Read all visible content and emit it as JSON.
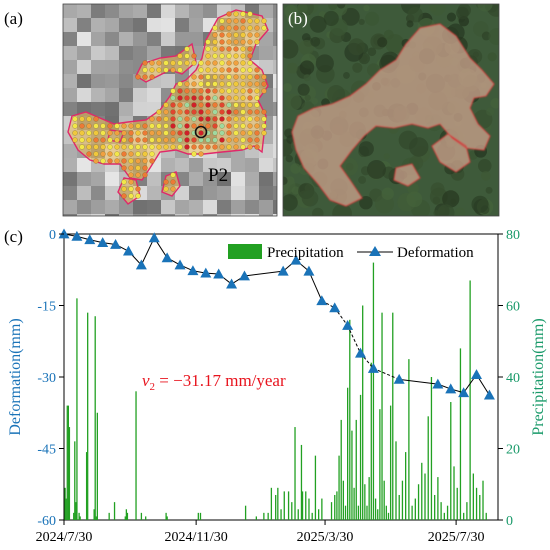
{
  "panels": {
    "a": {
      "letter": "(a)",
      "point_label": "P2"
    },
    "b": {
      "letter": "(b)"
    }
  },
  "chart_data": {
    "type": "bar+line",
    "panel_label": "(c)",
    "x_ticks": [
      "2024/7/30",
      "2024/11/30",
      "2025/3/30",
      "2025/7/30"
    ],
    "ylabel": "Deformation(mm)",
    "ylabel_right": "Precipitation(mm)",
    "ylim": [
      -60,
      0
    ],
    "y_ticks": [
      0,
      -15,
      -30,
      -45,
      -60
    ],
    "ylim_right": [
      0,
      80
    ],
    "y_ticks_right": [
      0,
      20,
      40,
      60,
      80
    ],
    "grid": false,
    "legend_position": "top-right",
    "annotation": {
      "symbol": "v",
      "subscript": "2",
      "text": " = −31.17 mm/year"
    },
    "colors": {
      "deformation": "#1a73b8",
      "precipitation": "#22a022",
      "annotation": "#e8141e",
      "right_axis": "#1a9a6a"
    },
    "series": [
      {
        "name": "Precipitation",
        "type": "bar",
        "x": [
          "2024-07-31",
          "2024-08-01",
          "2024-08-02",
          "2024-08-03",
          "2024-08-04",
          "2024-08-08",
          "2024-08-09",
          "2024-08-10",
          "2024-08-11",
          "2024-08-13",
          "2024-08-14",
          "2024-08-20",
          "2024-08-21",
          "2024-08-27",
          "2024-08-28",
          "2024-08-29",
          "2024-08-30",
          "2024-09-10",
          "2024-09-15",
          "2024-09-25",
          "2024-09-26",
          "2024-09-27",
          "2024-10-05",
          "2024-10-10",
          "2024-10-14",
          "2024-11-02",
          "2024-11-03",
          "2024-12-02",
          "2024-12-04",
          "2025-01-15",
          "2025-01-25",
          "2025-02-01",
          "2025-02-05",
          "2025-02-08",
          "2025-02-12",
          "2025-02-14",
          "2025-02-17",
          "2025-02-20",
          "2025-02-24",
          "2025-02-27",
          "2025-03-02",
          "2025-03-05",
          "2025-03-08",
          "2025-03-09",
          "2025-03-12",
          "2025-03-15",
          "2025-03-18",
          "2025-03-21",
          "2025-03-24",
          "2025-03-27",
          "2025-04-05",
          "2025-04-08",
          "2025-04-10",
          "2025-04-12",
          "2025-04-14",
          "2025-04-16",
          "2025-04-18",
          "2025-04-20",
          "2025-04-22",
          "2025-04-24",
          "2025-04-26",
          "2025-04-28",
          "2025-04-30",
          "2025-05-02",
          "2025-05-04",
          "2025-05-06",
          "2025-05-08",
          "2025-05-10",
          "2025-05-12",
          "2025-05-14",
          "2025-05-16",
          "2025-05-18",
          "2025-05-20",
          "2025-05-22",
          "2025-05-24",
          "2025-05-26",
          "2025-05-28",
          "2025-05-30",
          "2025-06-01",
          "2025-06-04",
          "2025-06-07",
          "2025-06-10",
          "2025-06-13",
          "2025-06-16",
          "2025-06-19",
          "2025-06-22",
          "2025-06-25",
          "2025-06-28",
          "2025-07-01",
          "2025-07-04",
          "2025-07-07",
          "2025-07-10",
          "2025-07-13",
          "2025-07-16",
          "2025-07-19",
          "2025-07-22",
          "2025-07-25",
          "2025-07-28",
          "2025-07-31",
          "2025-08-03",
          "2025-08-06",
          "2025-08-09",
          "2025-08-12",
          "2025-08-15",
          "2025-08-18",
          "2025-08-21",
          "2025-08-24",
          "2025-08-27"
        ],
        "values": [
          9,
          6,
          32,
          32,
          26,
          2,
          22,
          5,
          62,
          2,
          1,
          19,
          58,
          3,
          57,
          1,
          30,
          2,
          5,
          1,
          3,
          2,
          36,
          2,
          1,
          2,
          1,
          2,
          2,
          4,
          1,
          2,
          2,
          9,
          7,
          9,
          3,
          8,
          8,
          5,
          26,
          3,
          21,
          8,
          8,
          6,
          2,
          18,
          3,
          6,
          5,
          7,
          8,
          18,
          28,
          11,
          4,
          37,
          56,
          25,
          9,
          28,
          4,
          35,
          60,
          10,
          4,
          12,
          44,
          72,
          6,
          3,
          31,
          58,
          11,
          4,
          2,
          32,
          58,
          22,
          7,
          11,
          19,
          45,
          4,
          6,
          10,
          16,
          13,
          29,
          40,
          7,
          12,
          5,
          2,
          4,
          33,
          15,
          9,
          48,
          2,
          5,
          67,
          13,
          9,
          7,
          11,
          2
        ]
      },
      {
        "name": "Deformation",
        "type": "line",
        "x": [
          "2024-07-30",
          "2024-08-11",
          "2024-08-23",
          "2024-09-04",
          "2024-09-16",
          "2024-09-28",
          "2024-10-10",
          "2024-10-22",
          "2024-11-03",
          "2024-11-15",
          "2024-11-27",
          "2024-12-09",
          "2024-12-21",
          "2025-01-02",
          "2025-01-14",
          "2025-02-19",
          "2025-03-03",
          "2025-03-15",
          "2025-03-27",
          "2025-04-08",
          "2025-04-20",
          "2025-05-02",
          "2025-05-14",
          "2025-06-07",
          "2025-07-13",
          "2025-07-25",
          "2025-08-06",
          "2025-08-18",
          "2025-08-30"
        ],
        "values": [
          0,
          -0.5,
          -1.2,
          -1.8,
          -2.2,
          -3.6,
          -6.5,
          -0.8,
          -5,
          -6.5,
          -7.7,
          -8.2,
          -8.4,
          -10.5,
          -8.8,
          -7.8,
          -5.5,
          -7.8,
          -14,
          -15.5,
          -19.2,
          -25,
          -28.2,
          -30.5,
          -31.5,
          -32.5,
          -33.3,
          -29.5,
          -33.8
        ]
      }
    ]
  }
}
